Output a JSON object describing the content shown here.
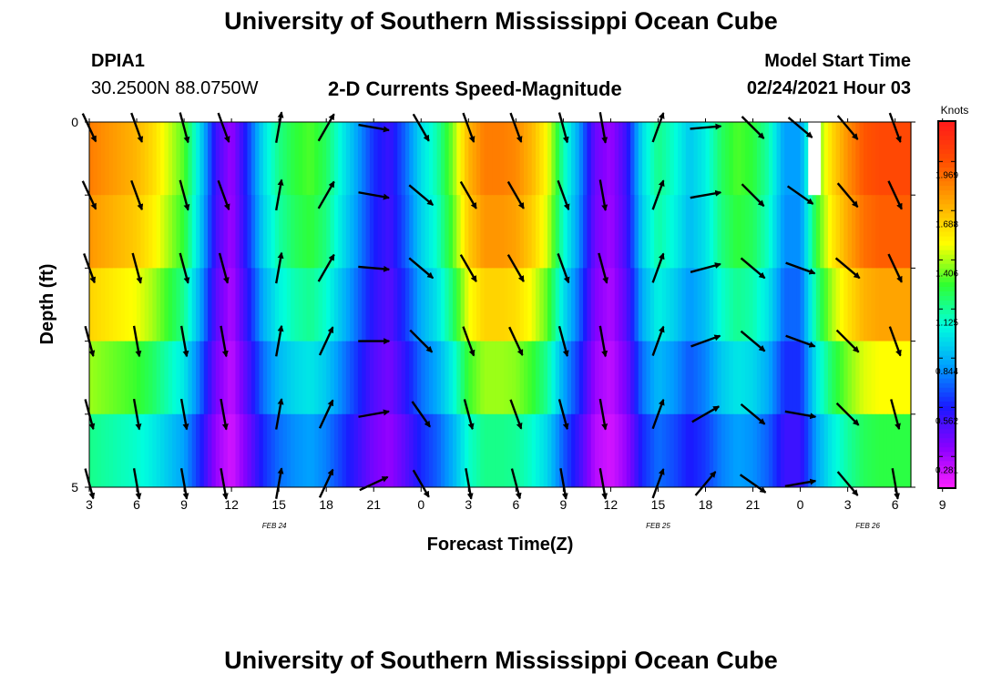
{
  "page": {
    "title_top": "University of Southern Mississippi Ocean Cube",
    "title_bottom": "University of Southern Mississippi Ocean Cube",
    "station_id": "DPIA1",
    "station_coords": "30.2500N 88.0750W",
    "product": "2-D Currents Speed-Magnitude",
    "model_start_label": "Model Start Time",
    "model_start_value": "02/24/2021 Hour 03"
  },
  "chart_data": {
    "type": "heatmap",
    "title": "2-D Currents Speed-Magnitude",
    "xlabel": "Forecast Time(Z)",
    "ylabel": "Depth (ft)",
    "ylim": [
      0,
      5
    ],
    "y_ticks": [
      "0",
      "5"
    ],
    "x_tick_labels": [
      "3",
      "6",
      "9",
      "12",
      "15",
      "18",
      "21",
      "0",
      "3",
      "6",
      "9",
      "12",
      "15",
      "18",
      "21",
      "0",
      "3",
      "6",
      "9"
    ],
    "date_labels": [
      "FEB 24",
      "FEB 25",
      "FEB 26"
    ],
    "colorbar": {
      "unit": "Knots",
      "tick_labels": [
        "1.969",
        "1.688",
        "1.406",
        "1.125",
        "0.844",
        "0.562",
        "0.281"
      ],
      "tick_values": [
        1.969,
        1.688,
        1.406,
        1.125,
        0.844,
        0.562,
        0.281
      ],
      "range": [
        0.1,
        2.2
      ],
      "colors": [
        "#ff20ff",
        "#8a00ff",
        "#1a1aff",
        "#00a0ff",
        "#00ffdd",
        "#30ff30",
        "#ffff00",
        "#ffaa00",
        "#ff5000",
        "#ff1a1a"
      ]
    },
    "depth_layers": 5,
    "time_hours": [
      3,
      4,
      5,
      6,
      7,
      8,
      9,
      10,
      11,
      12,
      13,
      14,
      15,
      16,
      17,
      18,
      19,
      20,
      21,
      22,
      23,
      24,
      25,
      26,
      27,
      28,
      29,
      30,
      31,
      32,
      33,
      34,
      35,
      36,
      37,
      38,
      39,
      40,
      41,
      42,
      43,
      44,
      45,
      46,
      47,
      48,
      49,
      50,
      51,
      52,
      53,
      54,
      55
    ],
    "speed_surface": [
      1.85,
      1.8,
      1.75,
      1.7,
      1.6,
      1.45,
      1.3,
      0.95,
      0.5,
      0.3,
      0.6,
      0.95,
      1.15,
      1.25,
      1.3,
      1.2,
      1.0,
      0.8,
      0.6,
      0.5,
      0.7,
      0.95,
      1.1,
      1.35,
      1.7,
      1.85,
      1.85,
      1.82,
      1.7,
      1.5,
      1.1,
      0.8,
      0.4,
      0.3,
      0.5,
      0.95,
      1.15,
      1.05,
      0.9,
      1.0,
      1.2,
      1.3,
      1.25,
      1.1,
      0.8,
      0.8,
      1.3,
      1.6,
      1.8,
      1.95,
      2.0,
      2.0,
      2.0
    ],
    "depth_factors": [
      1.0,
      1.0,
      0.93,
      0.82,
      0.68,
      0.56
    ],
    "vector_times": [
      3,
      6,
      9,
      11.5,
      15,
      18,
      21,
      24,
      27,
      30,
      33,
      35.5,
      39,
      42,
      45,
      48,
      51,
      54
    ],
    "vector_directions_deg": [
      [
        155,
        160,
        165,
        160,
        10,
        30,
        100,
        150,
        160,
        160,
        165,
        170,
        20,
        85,
        135,
        130,
        140,
        160
      ],
      [
        155,
        160,
        165,
        160,
        10,
        30,
        100,
        130,
        150,
        150,
        160,
        170,
        20,
        80,
        135,
        125,
        140,
        155
      ],
      [
        160,
        165,
        165,
        165,
        10,
        30,
        95,
        130,
        150,
        150,
        160,
        165,
        20,
        75,
        130,
        110,
        130,
        155
      ],
      [
        165,
        170,
        170,
        170,
        10,
        25,
        90,
        135,
        160,
        155,
        165,
        170,
        20,
        70,
        130,
        110,
        135,
        160
      ],
      [
        165,
        170,
        170,
        170,
        10,
        25,
        80,
        145,
        165,
        160,
        165,
        170,
        20,
        60,
        130,
        100,
        135,
        165
      ],
      [
        165,
        170,
        170,
        170,
        10,
        25,
        65,
        150,
        170,
        165,
        170,
        170,
        20,
        40,
        125,
        80,
        140,
        170
      ]
    ],
    "missing_block": {
      "time_start": 48.5,
      "time_end": 49.3,
      "depth_start": 0,
      "depth_end": 1
    }
  }
}
